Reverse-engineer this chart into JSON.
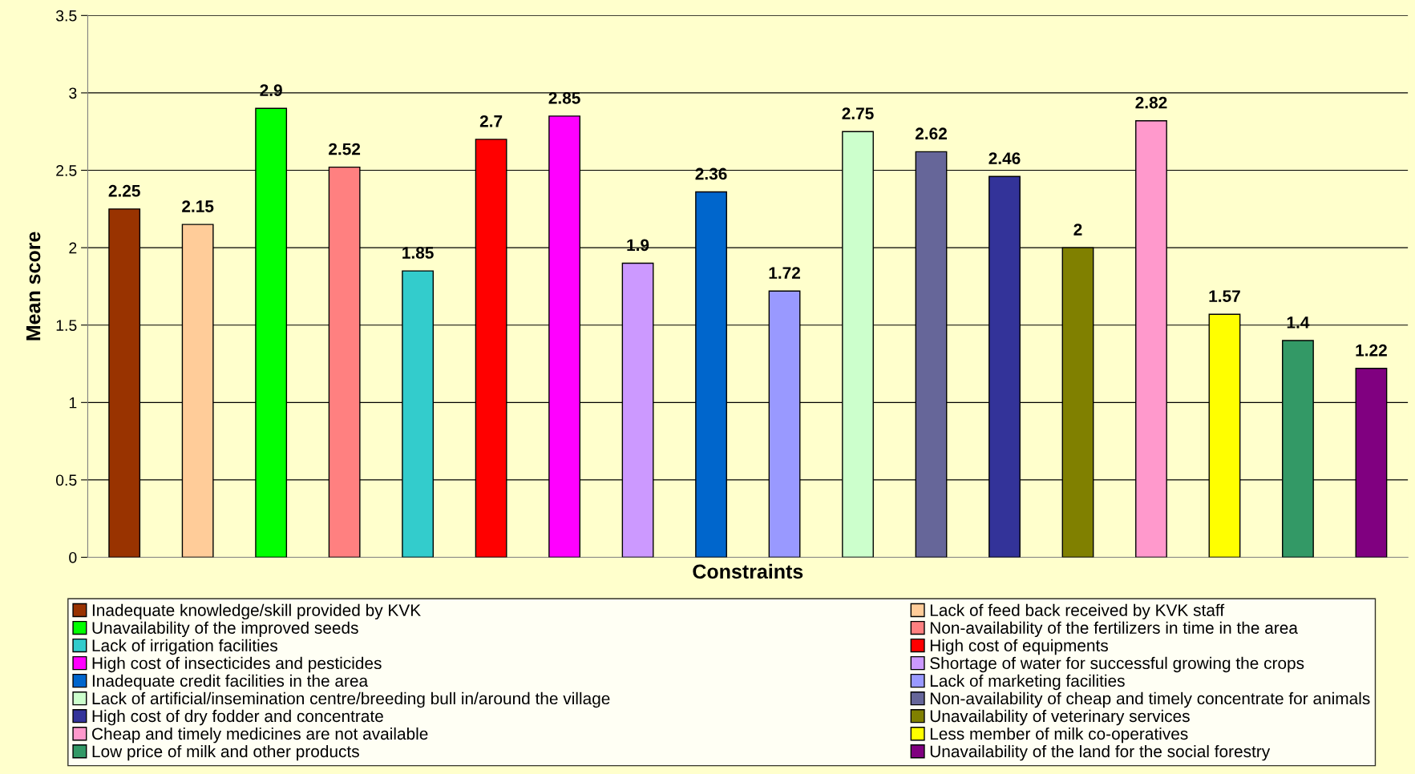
{
  "chart_data": {
    "type": "bar",
    "xlabel": "Constraints",
    "ylabel": "Mean score",
    "categories": [
      null,
      null,
      null,
      null,
      null,
      null,
      null,
      null,
      null,
      null,
      null,
      null,
      null,
      null,
      null,
      null,
      null,
      null
    ],
    "series": [
      {
        "name": "Inadequate knowledge/skill provided by KVK",
        "color": "#993300",
        "values": [
          2.25,
          null,
          null,
          null,
          null,
          null,
          null,
          null,
          null,
          null,
          null,
          null,
          null,
          null,
          null,
          null,
          null,
          null
        ]
      },
      {
        "name": "Lack of feed back received by KVK staff",
        "color": "#ffcc99",
        "values": [
          null,
          2.15,
          null,
          null,
          null,
          null,
          null,
          null,
          null,
          null,
          null,
          null,
          null,
          null,
          null,
          null,
          null,
          null
        ]
      },
      {
        "name": "Unavailability of the improved seeds",
        "color": "#00ff00",
        "values": [
          null,
          null,
          2.9,
          null,
          null,
          null,
          null,
          null,
          null,
          null,
          null,
          null,
          null,
          null,
          null,
          null,
          null,
          null
        ]
      },
      {
        "name": "Non-availability of the fertilizers in time in the area",
        "color": "#ff8080",
        "values": [
          null,
          null,
          null,
          2.52,
          null,
          null,
          null,
          null,
          null,
          null,
          null,
          null,
          null,
          null,
          null,
          null,
          null,
          null
        ]
      },
      {
        "name": "Lack of irrigation facilities",
        "color": "#33cccc",
        "values": [
          null,
          null,
          null,
          null,
          1.85,
          null,
          null,
          null,
          null,
          null,
          null,
          null,
          null,
          null,
          null,
          null,
          null,
          null
        ]
      },
      {
        "name": "High cost of equipments",
        "color": "#ff0000",
        "values": [
          null,
          null,
          null,
          null,
          null,
          2.7,
          null,
          null,
          null,
          null,
          null,
          null,
          null,
          null,
          null,
          null,
          null,
          null
        ]
      },
      {
        "name": "High cost of insecticides and pesticides",
        "color": "#ff00ff",
        "values": [
          null,
          null,
          null,
          null,
          null,
          null,
          2.85,
          null,
          null,
          null,
          null,
          null,
          null,
          null,
          null,
          null,
          null,
          null
        ]
      },
      {
        "name": "Shortage of water for successful growing the crops",
        "color": "#cc99ff",
        "values": [
          null,
          null,
          null,
          null,
          null,
          null,
          null,
          1.9,
          null,
          null,
          null,
          null,
          null,
          null,
          null,
          null,
          null,
          null
        ]
      },
      {
        "name": "Inadequate credit facilities in the area",
        "color": "#0066cc",
        "values": [
          null,
          null,
          null,
          null,
          null,
          null,
          null,
          null,
          2.36,
          null,
          null,
          null,
          null,
          null,
          null,
          null,
          null,
          null
        ]
      },
      {
        "name": "Lack of marketing facilities",
        "color": "#9999ff",
        "values": [
          null,
          null,
          null,
          null,
          null,
          null,
          null,
          null,
          null,
          1.72,
          null,
          null,
          null,
          null,
          null,
          null,
          null,
          null
        ]
      },
      {
        "name": "Lack of artificial/insemination centre/breeding bull in/around the village",
        "color": "#ccffcc",
        "values": [
          null,
          null,
          null,
          null,
          null,
          null,
          null,
          null,
          null,
          null,
          2.75,
          null,
          null,
          null,
          null,
          null,
          null,
          null
        ]
      },
      {
        "name": "Non-availability of cheap and timely concentrate for animals",
        "color": "#666699",
        "values": [
          null,
          null,
          null,
          null,
          null,
          null,
          null,
          null,
          null,
          null,
          null,
          2.62,
          null,
          null,
          null,
          null,
          null,
          null
        ]
      },
      {
        "name": "High cost of dry fodder and concentrate",
        "color": "#333399",
        "values": [
          null,
          null,
          null,
          null,
          null,
          null,
          null,
          null,
          null,
          null,
          null,
          null,
          2.46,
          null,
          null,
          null,
          null,
          null
        ]
      },
      {
        "name": "Unavailability of veterinary services",
        "color": "#808000",
        "values": [
          null,
          null,
          null,
          null,
          null,
          null,
          null,
          null,
          null,
          null,
          null,
          null,
          null,
          2,
          null,
          null,
          null,
          null
        ]
      },
      {
        "name": "Cheap and timely medicines are not available",
        "color": "#ff99cc",
        "values": [
          null,
          null,
          null,
          null,
          null,
          null,
          null,
          null,
          null,
          null,
          null,
          null,
          null,
          null,
          2.82,
          null,
          null,
          null
        ]
      },
      {
        "name": "Less member of milk co-operatives",
        "color": "#ffff00",
        "values": [
          null,
          null,
          null,
          null,
          null,
          null,
          null,
          null,
          null,
          null,
          null,
          null,
          null,
          null,
          null,
          1.57,
          null,
          null
        ]
      },
      {
        "name": "Low price of milk and other products",
        "color": "#339966",
        "values": [
          null,
          null,
          null,
          null,
          null,
          null,
          null,
          null,
          null,
          null,
          null,
          null,
          null,
          null,
          null,
          null,
          1.4,
          null
        ]
      },
      {
        "name": "Unavailability of the land for the social forestry",
        "color": "#800080",
        "values": [
          null,
          null,
          null,
          null,
          null,
          null,
          null,
          null,
          null,
          null,
          null,
          null,
          null,
          null,
          null,
          null,
          null,
          1.22
        ]
      }
    ],
    "ylim": [
      0,
      3.5
    ],
    "yticks": [
      0,
      0.5,
      1,
      1.5,
      2,
      2.5,
      3,
      3.5
    ],
    "grid": "y",
    "data_labels": true,
    "legend": "bottom",
    "tick_labels": "y"
  }
}
